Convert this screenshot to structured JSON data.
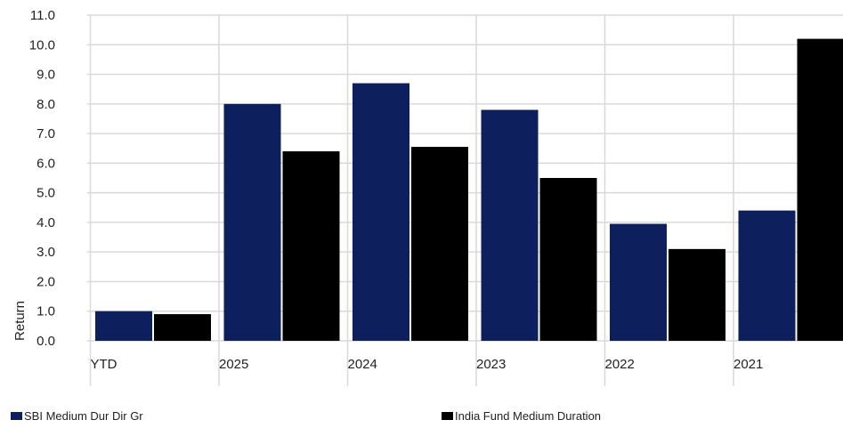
{
  "chart_data": {
    "type": "bar",
    "title": "",
    "xlabel": "",
    "ylabel": "Return",
    "ylim": [
      0,
      11
    ],
    "yticks": [
      "0.0",
      "1.0",
      "2.0",
      "3.0",
      "4.0",
      "5.0",
      "6.0",
      "7.0",
      "8.0",
      "9.0",
      "10.0",
      "11.0"
    ],
    "categories": [
      "YTD",
      "2025",
      "2024",
      "2023",
      "2022",
      "2021"
    ],
    "grid": true,
    "legend_position": "bottom",
    "series": [
      {
        "name": "SBI Medium Dur Dir Gr",
        "color": "#0d1f5c",
        "values": [
          1.0,
          8.0,
          8.7,
          7.8,
          3.95,
          4.4
        ]
      },
      {
        "name": "India Fund Medium Duration",
        "color": "#000000",
        "values": [
          0.9,
          6.4,
          6.55,
          5.5,
          3.1,
          10.2
        ]
      }
    ]
  }
}
